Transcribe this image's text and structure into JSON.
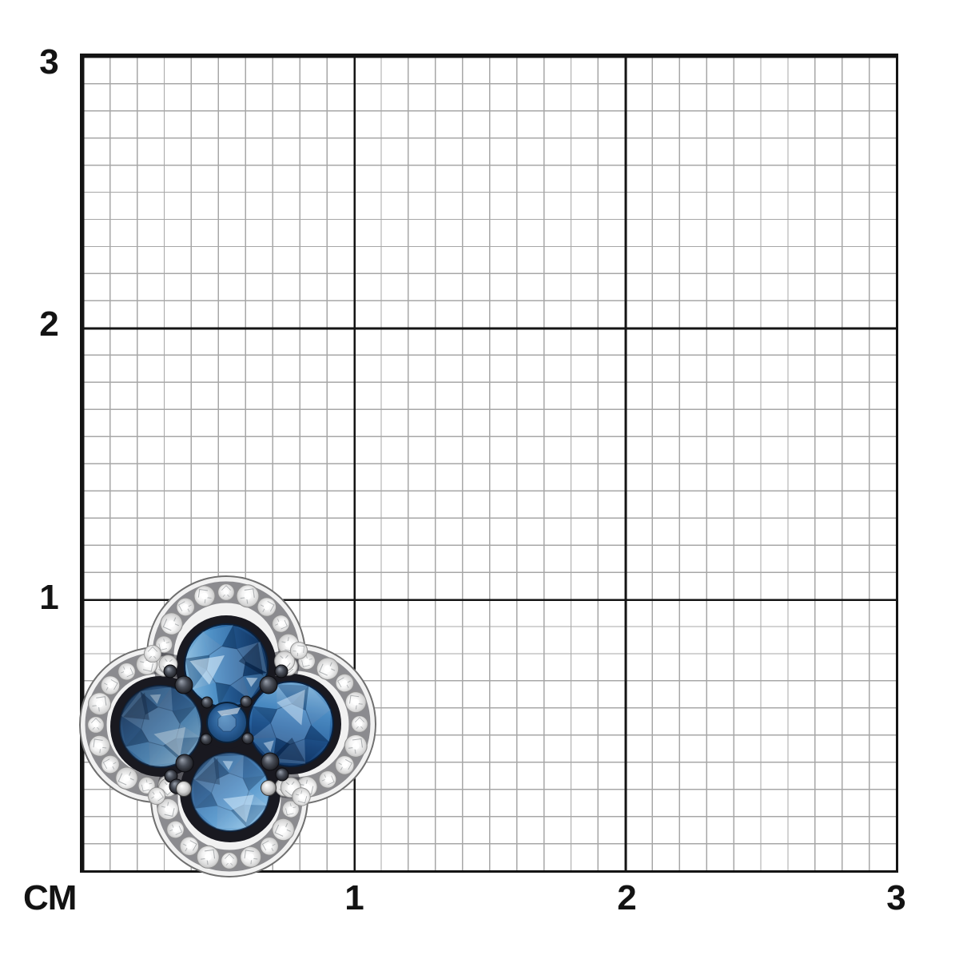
{
  "page": {
    "background": "#ffffff"
  },
  "ruler": {
    "unit_label": "CM",
    "left_labels": [
      "3",
      "2",
      "1"
    ],
    "bottom_labels": [
      "1",
      "2",
      "3"
    ]
  },
  "palette": {
    "grid_minor": "#a7a7a7",
    "grid_major": "#141414",
    "label_text": "#131313",
    "sapphire_blue": "#2a66a2",
    "diamond_white": "#f4f4f4",
    "metal_silver": "#f1f1f1",
    "black_rhodium": "#191920"
  },
  "subject": {
    "item": "clover-shaped jewelry piece with four round blue sapphires, small center sapphire and pave diamond halo"
  }
}
